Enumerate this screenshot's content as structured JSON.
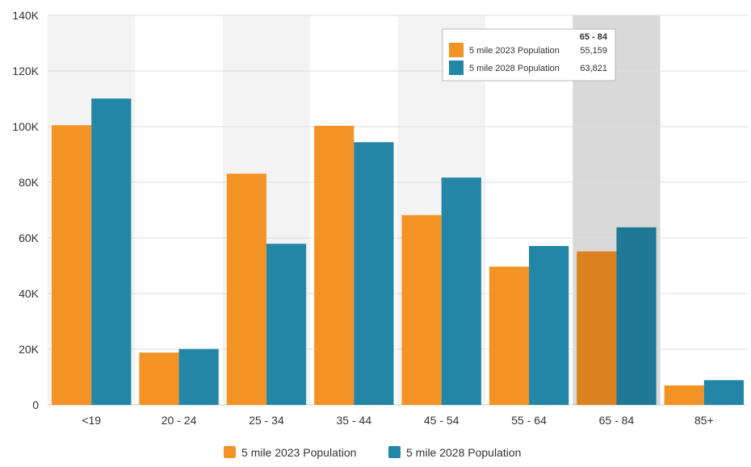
{
  "chart_data": {
    "type": "bar",
    "categories": [
      "<19",
      "20 - 24",
      "25 - 34",
      "35 - 44",
      "45 - 54",
      "55 - 64",
      "65 - 84",
      "85+"
    ],
    "series": [
      {
        "name": "5 mile 2023 Population",
        "color": "#f39325",
        "values": [
          100500,
          18800,
          83100,
          100300,
          68200,
          49700,
          55159,
          7000
        ]
      },
      {
        "name": "5 mile 2028 Population",
        "color": "#2386a6",
        "values": [
          110100,
          20100,
          57900,
          94400,
          81700,
          57100,
          63821,
          8900
        ]
      }
    ],
    "ylim": [
      0,
      140000
    ],
    "yticks": [
      0,
      20000,
      40000,
      60000,
      80000,
      100000,
      120000,
      140000
    ],
    "ytick_labels": [
      "0",
      "20K",
      "40K",
      "60K",
      "80K",
      "100K",
      "120K",
      "140K"
    ],
    "grid": true,
    "legend": "bottom",
    "highlighted_category": "65 - 84",
    "tooltip": {
      "header": "65 - 84",
      "rows": [
        {
          "label": "5 mile 2023 Population",
          "value": "55,159",
          "color": "#f39325"
        },
        {
          "label": "5 mile 2028 Population",
          "value": "63,821",
          "color": "#2386a6"
        }
      ]
    }
  }
}
